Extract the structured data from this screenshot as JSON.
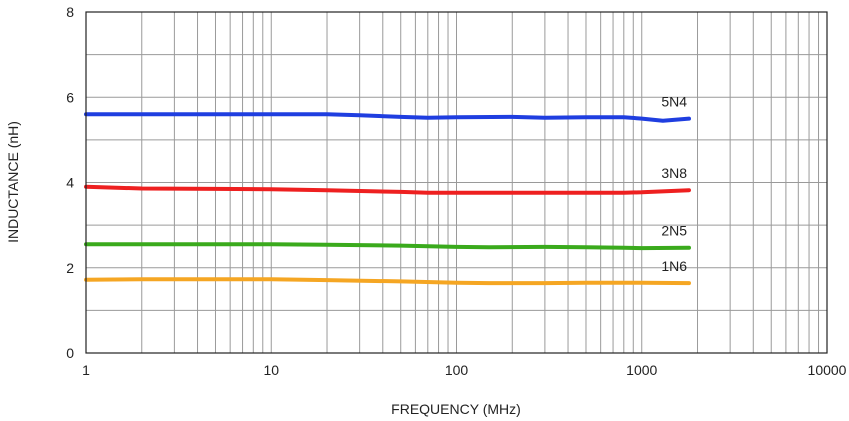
{
  "chart_data": {
    "type": "line",
    "title": "",
    "xlabel": "FREQUENCY (MHz)",
    "ylabel": "INDUCTANCE (nH)",
    "x_scale": "log",
    "xlim": [
      1,
      10000
    ],
    "ylim": [
      0,
      8
    ],
    "x_ticks": [
      "1",
      "10",
      "100",
      "1000",
      "10000"
    ],
    "y_ticks": [
      "0",
      "2",
      "4",
      "6",
      "8"
    ],
    "grid": true,
    "series": [
      {
        "name": "5N4",
        "color": "#1f3ee0",
        "x": [
          1,
          2,
          5,
          10,
          20,
          30,
          50,
          70,
          100,
          200,
          300,
          500,
          800,
          1000,
          1300,
          1800
        ],
        "y": [
          5.6,
          5.6,
          5.6,
          5.6,
          5.6,
          5.58,
          5.54,
          5.52,
          5.53,
          5.54,
          5.52,
          5.53,
          5.53,
          5.5,
          5.45,
          5.5
        ]
      },
      {
        "name": "3N8",
        "color": "#ee2020",
        "x": [
          1,
          2,
          5,
          10,
          20,
          50,
          70,
          100,
          200,
          500,
          800,
          1000,
          1800
        ],
        "y": [
          3.9,
          3.86,
          3.85,
          3.84,
          3.82,
          3.78,
          3.76,
          3.76,
          3.76,
          3.76,
          3.76,
          3.77,
          3.82
        ]
      },
      {
        "name": "2N5",
        "color": "#3aaa1c",
        "x": [
          1,
          2,
          5,
          10,
          20,
          50,
          100,
          150,
          300,
          500,
          800,
          1000,
          1800
        ],
        "y": [
          2.55,
          2.55,
          2.55,
          2.55,
          2.54,
          2.52,
          2.49,
          2.48,
          2.49,
          2.48,
          2.47,
          2.46,
          2.47
        ]
      },
      {
        "name": "1N6",
        "color": "#f5a623",
        "x": [
          1,
          2,
          5,
          10,
          20,
          50,
          100,
          150,
          300,
          500,
          1000,
          1800
        ],
        "y": [
          1.72,
          1.73,
          1.73,
          1.73,
          1.71,
          1.68,
          1.65,
          1.64,
          1.64,
          1.65,
          1.65,
          1.64
        ]
      }
    ]
  }
}
